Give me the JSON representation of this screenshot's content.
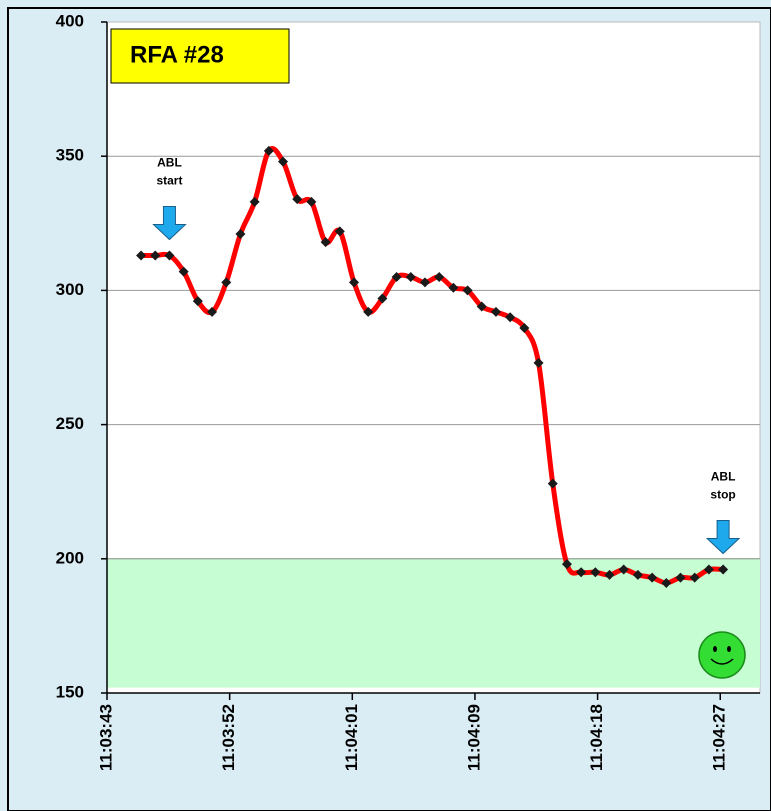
{
  "chart_data": {
    "type": "line",
    "title": "RFA #28",
    "x": [
      2.4,
      3.4,
      4.4,
      5.4,
      6.4,
      7.4,
      8.4,
      9.4,
      10.4,
      11.4,
      12.4,
      13.4,
      14.4,
      15.4,
      16.4,
      17.4,
      18.4,
      19.4,
      20.4,
      21.4,
      22.4,
      23.4,
      24.4,
      25.4,
      26.4,
      27.4,
      28.4,
      29.4,
      30.4,
      31.4,
      32.4,
      33.4,
      34.4,
      35.4,
      36.4,
      37.4,
      38.4,
      39.4,
      40.4,
      41.4,
      42.4,
      43.4
    ],
    "series": [
      {
        "color": "#ff0000",
        "marker_color": "#1a1a1a",
        "values": [
          313,
          313,
          313,
          307,
          296,
          292,
          303,
          321,
          333,
          352,
          348,
          334,
          333,
          318,
          322,
          303,
          292,
          297,
          305,
          305,
          303,
          305,
          301,
          300,
          294,
          292,
          290,
          286,
          273,
          228,
          198,
          195,
          195,
          194,
          196,
          194,
          193,
          191,
          193,
          193,
          196,
          196
        ]
      }
    ],
    "xlim": [
      0,
      46
    ],
    "xticks": [
      {
        "value": 0,
        "label": "11:03:43"
      },
      {
        "value": 8.64,
        "label": "11:03:52"
      },
      {
        "value": 17.28,
        "label": "11:04:01"
      },
      {
        "value": 25.92,
        "label": "11:04:09"
      },
      {
        "value": 34.56,
        "label": "11:04:18"
      },
      {
        "value": 43.2,
        "label": "11:04:27"
      }
    ],
    "ylim": [
      150,
      400
    ],
    "yticks": [
      150,
      200,
      250,
      300,
      350,
      400
    ],
    "grid": true,
    "shaded_range": [
      152,
      200
    ],
    "shaded_color": "#c6fdd2",
    "annotations": [
      {
        "lines": [
          "ABL",
          "start"
        ],
        "x": 4.4
      },
      {
        "lines": [
          "ABL",
          "stop"
        ],
        "x": 43.4
      }
    ]
  }
}
